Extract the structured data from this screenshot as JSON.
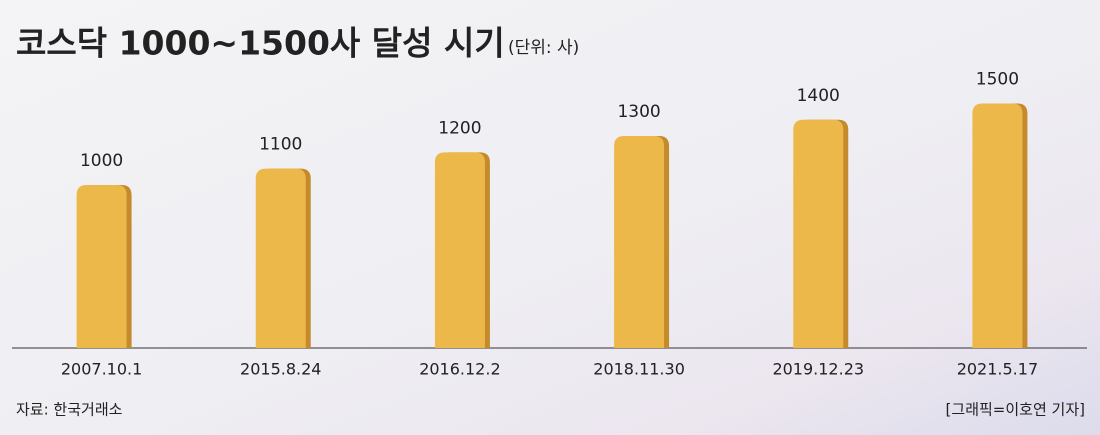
{
  "chart_data": {
    "type": "bar",
    "title": "코스닥 1000~1500사 달성 시기",
    "subtitle": "(단위: 사)",
    "categories": [
      "2007.10.1",
      "2015.8.24",
      "2016.12.2",
      "2018.11.30",
      "2019.12.23",
      "2021.5.17"
    ],
    "values": [
      1000,
      1100,
      1200,
      1300,
      1400,
      1500
    ],
    "color": "#edb84a",
    "ylim": [
      0,
      1650
    ],
    "source": "자료: 한국거래소",
    "credit": "[그래픽=이호연 기자]"
  }
}
